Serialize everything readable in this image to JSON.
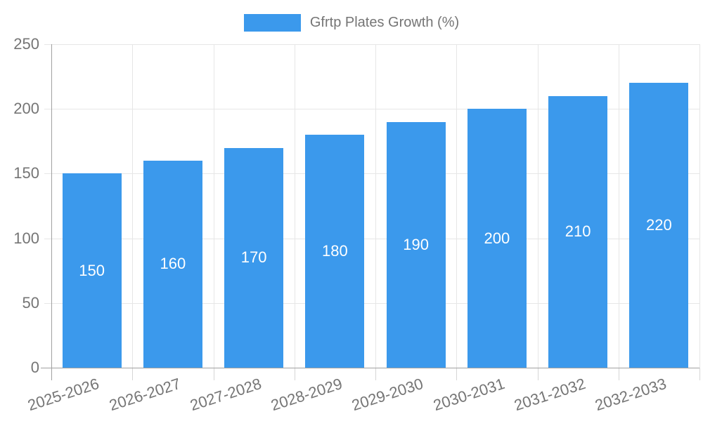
{
  "chart_data": {
    "type": "bar",
    "title": "Gfrtp Plates Growth (%)",
    "categories": [
      "2025-2026",
      "2026-2027",
      "2027-2028",
      "2028-2029",
      "2029-2030",
      "2030-2031",
      "2031-2032",
      "2032-2033"
    ],
    "values": [
      150,
      160,
      170,
      180,
      190,
      200,
      210,
      220
    ],
    "xlabel": "",
    "ylabel": "",
    "ylim": [
      0,
      250
    ],
    "yticks": [
      0,
      50,
      100,
      150,
      200,
      250
    ],
    "legend_position": "top",
    "grid": "horizontal-and-vertical",
    "bar_labels_inside": true,
    "colors": {
      "bar": "#3B99EC",
      "bar_label": "#FFFFFF",
      "axis_text": "#757575",
      "grid_line": "#E6E6E6",
      "axis_line": "#A0A0A0",
      "category_tick": "#D6D6D6",
      "background": "#FFFFFF"
    }
  }
}
